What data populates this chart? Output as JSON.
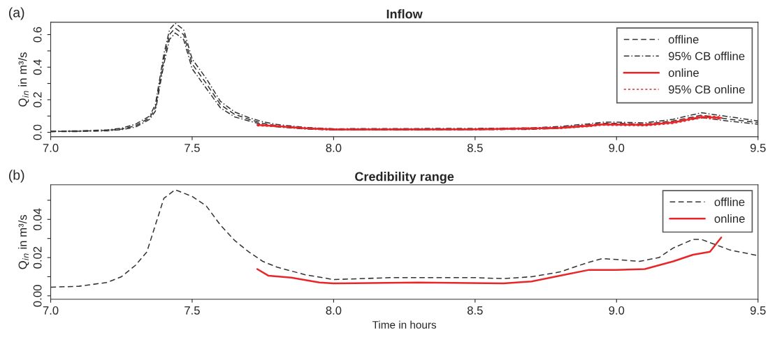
{
  "chart_data": [
    {
      "type": "line",
      "title": "Inflow",
      "ylabel": "Q$_{in}$ in m³/s",
      "annotations": [
        "(a)"
      ],
      "xlim": [
        7.0,
        9.5
      ],
      "xticks": [
        {
          "value": 7.0,
          "label": "7.0"
        },
        7.5,
        {
          "value": 8.0,
          "label": "8.0"
        },
        8.5,
        {
          "value": 9.0,
          "label": "9.0"
        },
        9.5
      ],
      "ylim": [
        -0.027,
        0.676
      ],
      "yticks": [
        {
          "value": 0.0,
          "label": "0.0"
        },
        {
          "value": 0.1,
          "label": null
        },
        0.2,
        {
          "value": 0.3,
          "label": null
        },
        0.4,
        {
          "value": 0.5,
          "label": null
        },
        0.6
      ],
      "grid": false,
      "legend": "top right",
      "series": [
        {
          "name": "offline",
          "color": "#333333",
          "line_style": "dashed",
          "x": [
            7.0,
            7.1,
            7.2,
            7.25,
            7.3,
            7.35,
            7.37,
            7.4,
            7.42,
            7.44,
            7.47,
            7.5,
            7.55,
            7.6,
            7.65,
            7.7,
            7.75,
            7.8,
            7.9,
            8.0,
            8.5,
            8.7,
            8.8,
            8.9,
            8.95,
            9.0,
            9.1,
            9.2,
            9.3,
            9.4,
            9.5
          ],
          "values": [
            0.005,
            0.007,
            0.012,
            0.02,
            0.04,
            0.09,
            0.15,
            0.45,
            0.6,
            0.64,
            0.6,
            0.42,
            0.3,
            0.17,
            0.11,
            0.08,
            0.055,
            0.04,
            0.025,
            0.018,
            0.02,
            0.022,
            0.03,
            0.045,
            0.055,
            0.055,
            0.05,
            0.07,
            0.105,
            0.08,
            0.06
          ]
        },
        {
          "name": "95% CB offline",
          "color": "#333333",
          "line_style": "dashdot",
          "x": [
            7.0,
            7.1,
            7.2,
            7.25,
            7.3,
            7.35,
            7.37,
            7.4,
            7.42,
            7.44,
            7.47,
            7.5,
            7.55,
            7.6,
            7.65,
            7.7,
            7.75,
            7.8,
            7.9,
            8.0,
            8.5,
            8.7,
            8.8,
            8.9,
            8.95,
            9.0,
            9.1,
            9.2,
            9.3,
            9.4,
            9.5
          ],
          "values": [
            0.007,
            0.009,
            0.015,
            0.025,
            0.05,
            0.1,
            0.17,
            0.48,
            0.63,
            0.67,
            0.63,
            0.45,
            0.33,
            0.19,
            0.125,
            0.09,
            0.065,
            0.048,
            0.03,
            0.022,
            0.024,
            0.027,
            0.036,
            0.052,
            0.062,
            0.062,
            0.058,
            0.08,
            0.12,
            0.095,
            0.07
          ]
        },
        {
          "color": "#333333",
          "line_style": "dashdot",
          "x": [
            7.0,
            7.1,
            7.2,
            7.25,
            7.3,
            7.35,
            7.37,
            7.4,
            7.42,
            7.44,
            7.47,
            7.5,
            7.55,
            7.6,
            7.65,
            7.7,
            7.75,
            7.8,
            7.9,
            8.0,
            8.2,
            8.5,
            8.7,
            8.8,
            8.9,
            8.95,
            9.0,
            9.1,
            9.2,
            9.3,
            9.4,
            9.5
          ],
          "values": [
            0.004,
            0.005,
            0.009,
            0.016,
            0.032,
            0.08,
            0.13,
            0.42,
            0.57,
            0.61,
            0.57,
            0.39,
            0.27,
            0.15,
            0.095,
            0.07,
            0.047,
            0.033,
            0.02,
            0.014,
            0.014,
            0.016,
            0.018,
            0.025,
            0.038,
            0.048,
            0.048,
            0.043,
            0.06,
            0.09,
            0.068,
            0.05
          ]
        },
        {
          "name": "online",
          "color": "#e8262a",
          "line_style": "solid",
          "x": [
            7.73,
            7.8,
            7.9,
            8.0,
            8.5,
            8.8,
            8.9,
            8.95,
            9.0,
            9.1,
            9.2,
            9.3,
            9.37
          ],
          "values": [
            0.045,
            0.038,
            0.025,
            0.017,
            0.018,
            0.027,
            0.04,
            0.048,
            0.047,
            0.045,
            0.06,
            0.095,
            0.088
          ]
        },
        {
          "name": "95% CB online",
          "color": "#e8262a",
          "line_style": "dotted",
          "x": [
            7.73,
            7.8,
            7.9,
            8.0,
            8.5,
            8.8,
            8.9,
            8.95,
            9.0,
            9.1,
            9.2,
            9.3,
            9.37
          ],
          "values": [
            0.05,
            0.042,
            0.028,
            0.02,
            0.021,
            0.031,
            0.045,
            0.053,
            0.052,
            0.05,
            0.066,
            0.102,
            0.096
          ]
        },
        {
          "color": "#e8262a",
          "line_style": "dotted",
          "x": [
            7.73,
            7.8,
            7.9,
            8.0,
            8.5,
            8.8,
            8.9,
            8.95,
            9.0,
            9.1,
            9.2,
            9.3,
            9.37
          ],
          "values": [
            0.04,
            0.034,
            0.022,
            0.014,
            0.015,
            0.023,
            0.035,
            0.043,
            0.042,
            0.04,
            0.054,
            0.088,
            0.08
          ]
        }
      ]
    },
    {
      "type": "line",
      "title": "Credibility range",
      "xlabel": "Time in hours",
      "ylabel": "Q$_{in}$ in m³/s",
      "annotations": [
        "(b)"
      ],
      "xlim": [
        7.0,
        9.5
      ],
      "xticks": [
        {
          "value": 7.0,
          "label": "7.0"
        },
        7.5,
        {
          "value": 8.0,
          "label": "8.0"
        },
        8.5,
        {
          "value": 9.0,
          "label": "9.0"
        },
        9.5
      ],
      "ylim": [
        -0.0018,
        0.0581
      ],
      "yticks": [
        {
          "value": 0.0,
          "label": "0.00"
        },
        {
          "value": 0.01,
          "label": null
        },
        0.02,
        {
          "value": 0.03,
          "label": null
        },
        0.04,
        {
          "value": 0.05,
          "label": null
        }
      ],
      "grid": false,
      "legend": "top right",
      "series": [
        {
          "name": "offline",
          "color": "#333333",
          "line_style": "dashed",
          "x": [
            7.0,
            7.1,
            7.2,
            7.25,
            7.3,
            7.34,
            7.4,
            7.44,
            7.5,
            7.55,
            7.6,
            7.65,
            7.7,
            7.75,
            7.8,
            7.9,
            8.0,
            8.2,
            8.5,
            8.6,
            8.7,
            8.8,
            8.9,
            8.95,
            9.0,
            9.08,
            9.15,
            9.2,
            9.27,
            9.3,
            9.4,
            9.5
          ],
          "values": [
            0.0045,
            0.005,
            0.007,
            0.01,
            0.016,
            0.023,
            0.051,
            0.0555,
            0.052,
            0.047,
            0.037,
            0.029,
            0.023,
            0.018,
            0.015,
            0.011,
            0.0085,
            0.0095,
            0.0095,
            0.009,
            0.01,
            0.0125,
            0.0175,
            0.0195,
            0.019,
            0.018,
            0.02,
            0.025,
            0.0295,
            0.0295,
            0.024,
            0.021
          ]
        },
        {
          "name": "online",
          "color": "#e8262a",
          "line_style": "solid",
          "x": [
            7.73,
            7.77,
            7.85,
            7.95,
            8.0,
            8.3,
            8.6,
            8.7,
            8.8,
            8.9,
            9.0,
            9.1,
            9.2,
            9.27,
            9.33,
            9.37
          ],
          "values": [
            0.014,
            0.0105,
            0.0095,
            0.007,
            0.0065,
            0.007,
            0.0065,
            0.0075,
            0.0105,
            0.0135,
            0.0135,
            0.014,
            0.018,
            0.0215,
            0.023,
            0.0305
          ]
        }
      ]
    }
  ]
}
